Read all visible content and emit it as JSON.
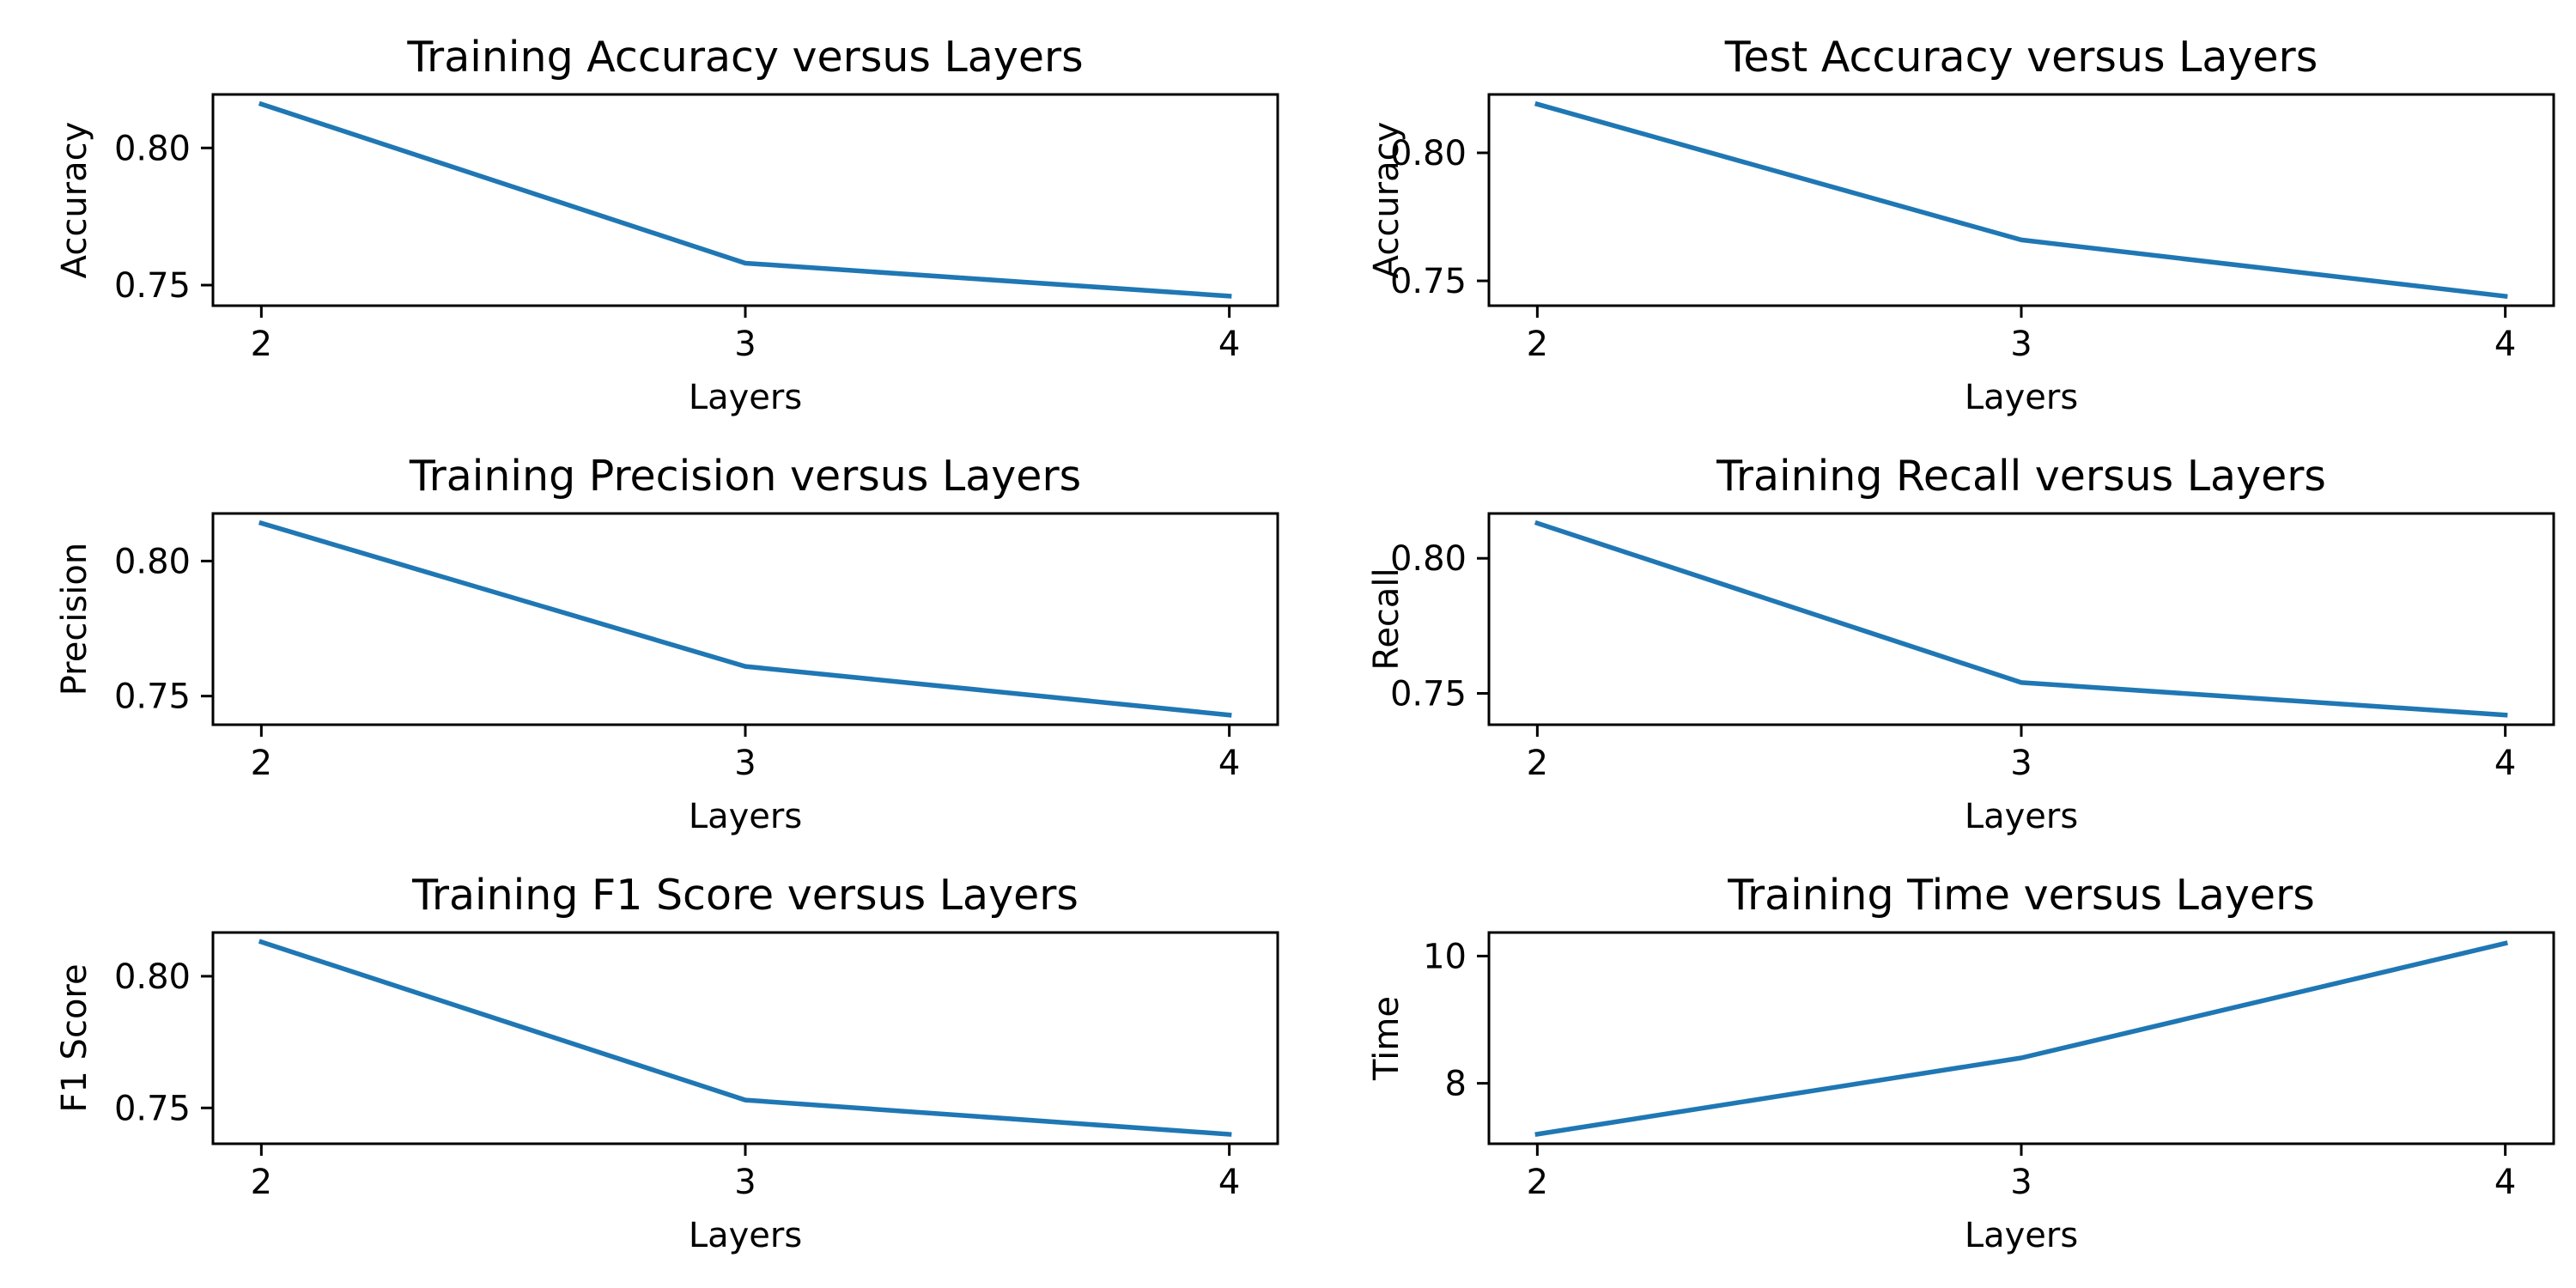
{
  "chart_data": [
    {
      "type": "line",
      "title": "Training Accuracy versus Layers",
      "xlabel": "Layers",
      "ylabel": "Accuracy",
      "x": [
        2,
        3,
        4
      ],
      "series": [
        {
          "values": [
            0.816,
            0.758,
            0.746
          ]
        }
      ],
      "xticks": [
        "2",
        "3",
        "4"
      ],
      "yticks": [
        0.75,
        0.8
      ],
      "ytick_labels": [
        "0.75",
        "0.80"
      ],
      "xlim": [
        1.9,
        4.1
      ],
      "ylim": [
        0.7425,
        0.8195
      ],
      "grid": false,
      "line_color": "#1f77b4"
    },
    {
      "type": "line",
      "title": "Test Accuracy versus Layers",
      "xlabel": "Layers",
      "ylabel": "Accuracy",
      "x": [
        2,
        3,
        4
      ],
      "series": [
        {
          "values": [
            0.819,
            0.766,
            0.744
          ]
        }
      ],
      "xticks": [
        "2",
        "3",
        "4"
      ],
      "yticks": [
        0.75,
        0.8
      ],
      "ytick_labels": [
        "0.75",
        "0.80"
      ],
      "xlim": [
        1.9,
        4.1
      ],
      "ylim": [
        0.7403,
        0.8228
      ],
      "grid": false,
      "line_color": "#1f77b4"
    },
    {
      "type": "line",
      "title": "Training Precision versus Layers",
      "xlabel": "Layers",
      "ylabel": "Precision",
      "x": [
        2,
        3,
        4
      ],
      "series": [
        {
          "values": [
            0.814,
            0.761,
            0.743
          ]
        }
      ],
      "xticks": [
        "2",
        "3",
        "4"
      ],
      "yticks": [
        0.75,
        0.8
      ],
      "ytick_labels": [
        "0.75",
        "0.80"
      ],
      "xlim": [
        1.9,
        4.1
      ],
      "ylim": [
        0.7394,
        0.8176
      ],
      "grid": false,
      "line_color": "#1f77b4"
    },
    {
      "type": "line",
      "title": "Training Recall versus Layers",
      "xlabel": "Layers",
      "ylabel": "Recall",
      "x": [
        2,
        3,
        4
      ],
      "series": [
        {
          "values": [
            0.813,
            0.754,
            0.742
          ]
        }
      ],
      "xticks": [
        "2",
        "3",
        "4"
      ],
      "yticks": [
        0.75,
        0.8
      ],
      "ytick_labels": [
        "0.75",
        "0.80"
      ],
      "xlim": [
        1.9,
        4.1
      ],
      "ylim": [
        0.7384,
        0.8166
      ],
      "grid": false,
      "line_color": "#1f77b4"
    },
    {
      "type": "line",
      "title": "Training F1 Score versus Layers",
      "xlabel": "Layers",
      "ylabel": "F1 Score",
      "x": [
        2,
        3,
        4
      ],
      "series": [
        {
          "values": [
            0.813,
            0.753,
            0.74
          ]
        }
      ],
      "xticks": [
        "2",
        "3",
        "4"
      ],
      "yticks": [
        0.75,
        0.8
      ],
      "ytick_labels": [
        "0.75",
        "0.80"
      ],
      "xlim": [
        1.9,
        4.1
      ],
      "ylim": [
        0.7364,
        0.8166
      ],
      "grid": false,
      "line_color": "#1f77b4"
    },
    {
      "type": "line",
      "title": "Training Time versus Layers",
      "xlabel": "Layers",
      "ylabel": "Time",
      "x": [
        2,
        3,
        4
      ],
      "series": [
        {
          "values": [
            7.2,
            8.4,
            10.2
          ]
        }
      ],
      "xticks": [
        "2",
        "3",
        "4"
      ],
      "yticks": [
        8,
        10
      ],
      "ytick_labels": [
        "8",
        "10"
      ],
      "xlim": [
        1.9,
        4.1
      ],
      "ylim": [
        7.05,
        10.37
      ],
      "grid": false,
      "line_color": "#1f77b4"
    }
  ]
}
